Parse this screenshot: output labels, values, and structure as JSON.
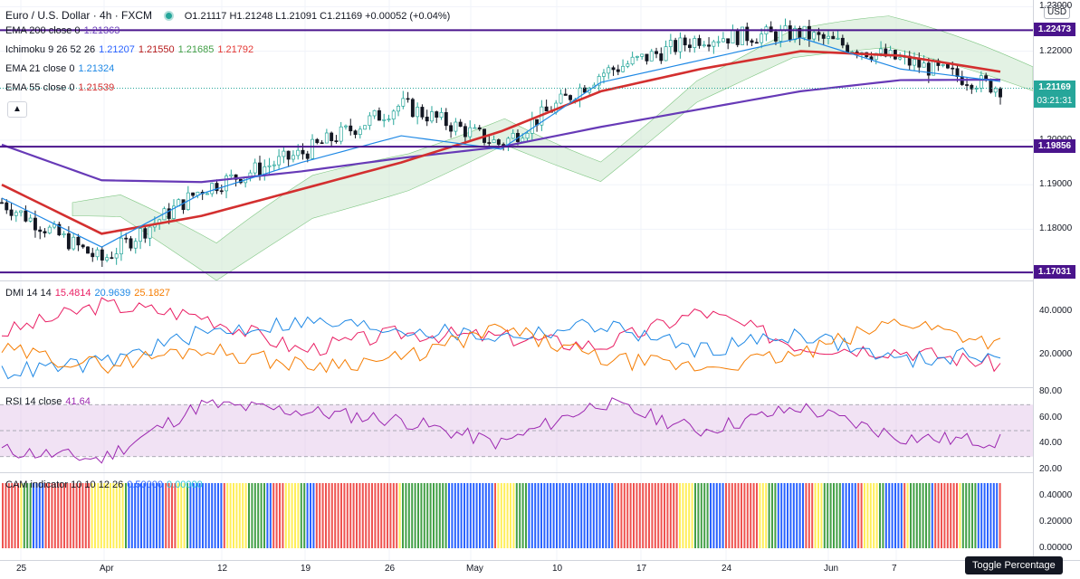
{
  "header": {
    "symbol": "Euro / U.S. Dollar · 4h · FXCM",
    "ohlc": "O1.21117 H1.21248 L1.21091 C1.21169 +0.00052 (+0.04%)"
  },
  "indicators": [
    {
      "label": "EMA 200 close 0",
      "values": [
        {
          "v": "1.21363",
          "color": "#673ab7"
        }
      ]
    },
    {
      "label": "Ichimoku 9 26 52 26",
      "values": [
        {
          "v": "1.21207",
          "color": "#2962ff"
        },
        {
          "v": "1.21550",
          "color": "#b71c1c"
        },
        {
          "v": "1.21685",
          "color": "#43a047"
        },
        {
          "v": "1.21792",
          "color": "#e53935"
        }
      ]
    },
    {
      "label": "EMA 21 close 0",
      "values": [
        {
          "v": "1.21324",
          "color": "#1e88e5"
        }
      ]
    },
    {
      "label": "EMA 55 close 0",
      "values": [
        {
          "v": "1.21539",
          "color": "#d32f2f"
        }
      ]
    }
  ],
  "currency_button": "USD",
  "collapse_icon": "chevron-up-icon",
  "price_levels": [
    {
      "value": 1.22473,
      "label": "1.22473"
    },
    {
      "value": 1.19856,
      "label": "1.19856"
    },
    {
      "value": 1.17031,
      "label": "1.17031"
    }
  ],
  "current_price": {
    "value": 1.21169,
    "label": "1.21169",
    "countdown": "03:21:31"
  },
  "price_axis_ticks": [
    "1.23000",
    "1.22000",
    "1.20000",
    "1.19000",
    "1.18000"
  ],
  "dmi": {
    "label": "DMI 14 14",
    "values": [
      {
        "v": "15.4814",
        "color": "#e91e63"
      },
      {
        "v": "20.9639",
        "color": "#1e88e5"
      },
      {
        "v": "25.1827",
        "color": "#f57c00"
      }
    ],
    "ticks": [
      "40.0000",
      "20.0000"
    ]
  },
  "rsi": {
    "label": "RSI 14 close",
    "value": "41.64",
    "ticks": [
      "80.00",
      "60.00",
      "40.00",
      "20.00"
    ]
  },
  "cam": {
    "label": "CAM indicator 10 10 12 26",
    "values": [
      {
        "v": "0.50000",
        "color": "#2962ff"
      },
      {
        "v": "0.00000",
        "color": "#26c6da"
      }
    ],
    "ticks": [
      "0.40000",
      "0.20000",
      "0.00000"
    ]
  },
  "time_axis": [
    "25",
    "Apr",
    "12",
    "19",
    "26",
    "May",
    "10",
    "17",
    "24",
    "Jun",
    "7"
  ],
  "tooltip": "Toggle Percentage",
  "colors": {
    "up": "#26a69a",
    "down": "#131722",
    "ema200": "#673ab7",
    "ema55": "#d32f2f",
    "ema21": "#1e88e5",
    "level": "#4a148c"
  },
  "chart_data": [
    {
      "type": "line",
      "title": "Euro / U.S. Dollar · 4h · FXCM",
      "ylim": [
        1.1685,
        1.2315
      ],
      "x": [
        "25",
        "Apr",
        "12",
        "19",
        "26",
        "May",
        "10",
        "17",
        "24",
        "Jun",
        "7"
      ],
      "series": [
        {
          "name": "EMA 200 close 0",
          "values": [
            1.199,
            1.191,
            1.1906,
            1.193,
            1.196,
            1.1985,
            1.203,
            1.207,
            1.211,
            1.2135,
            1.2136
          ]
        },
        {
          "name": "EMA 55 close 0",
          "values": [
            1.19,
            1.179,
            1.183,
            1.189,
            1.195,
            1.202,
            1.211,
            1.216,
            1.22,
            1.219,
            1.2154
          ]
        },
        {
          "name": "EMA 21 close 0",
          "values": [
            1.187,
            1.176,
            1.188,
            1.195,
            1.201,
            1.198,
            1.213,
            1.218,
            1.223,
            1.216,
            1.2132
          ]
        },
        {
          "name": "Price",
          "values": [
            1.186,
            1.173,
            1.189,
            1.197,
            1.208,
            1.199,
            1.215,
            1.223,
            1.224,
            1.218,
            1.2117
          ]
        }
      ]
    },
    {
      "type": "line",
      "title": "DMI 14 14",
      "ylim": [
        5,
        50
      ],
      "series": [
        {
          "name": "15.4814",
          "values": [
            30,
            43,
            38,
            22,
            30,
            28,
            24,
            40,
            24,
            22,
            15.48
          ]
        },
        {
          "name": "20.9639",
          "values": [
            12,
            16,
            30,
            35,
            32,
            28,
            34,
            22,
            30,
            17,
            20.96
          ]
        },
        {
          "name": "25.1827",
          "values": [
            22,
            15,
            23,
            15,
            18,
            32,
            18,
            14,
            20,
            36,
            25.18
          ]
        }
      ]
    },
    {
      "type": "line",
      "title": "RSI 14 close",
      "ylim": [
        18,
        82
      ],
      "series": [
        {
          "name": "RSI 14 close",
          "values": [
            35,
            28,
            70,
            65,
            58,
            40,
            72,
            50,
            68,
            45,
            41.64
          ]
        }
      ]
    },
    {
      "type": "bar",
      "title": "CAM indicator 10 10 12 26",
      "ylim": [
        0,
        0.5
      ],
      "series": [
        {
          "name": "CAM indicator 10 10 12 26",
          "values": [
            0.5
          ]
        }
      ]
    }
  ]
}
